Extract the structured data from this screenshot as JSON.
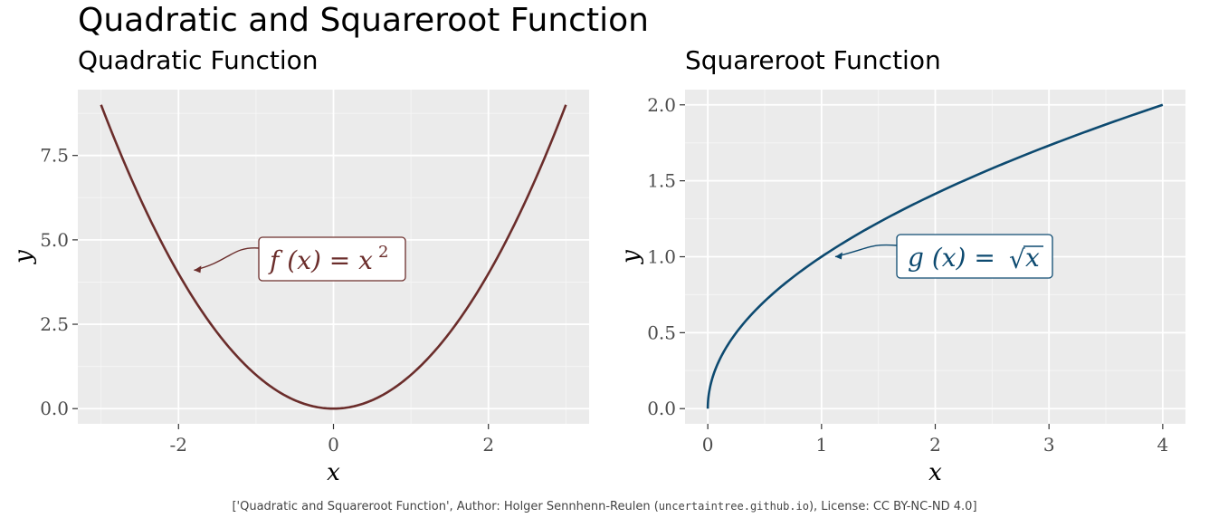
{
  "page": {
    "title": "Quadratic and Squareroot Function",
    "caption": {
      "part1": "['Quadratic and Squareroot Function', Author: Holger Sennhenn-Reulen (",
      "url": "uncertaintree.github.io",
      "part2": "), License: CC BY-NC-ND 4.0]"
    }
  },
  "chart_data": [
    {
      "type": "line",
      "title": "Quadratic Function",
      "function": "x^2",
      "x": [
        -3,
        -2.5,
        -2,
        -1.5,
        -1,
        -0.5,
        0,
        0.5,
        1,
        1.5,
        2,
        2.5,
        3
      ],
      "y": [
        9,
        6.25,
        4,
        2.25,
        1,
        0.25,
        0,
        0.25,
        1,
        2.25,
        4,
        6.25,
        9
      ],
      "xlabel": "x",
      "ylabel": "y",
      "xlim": [
        -3.3,
        3.3
      ],
      "ylim": [
        -0.45,
        9.45
      ],
      "xticks": [
        -2,
        0,
        2
      ],
      "xtick_labels": [
        "-2",
        "0",
        "2"
      ],
      "yticks": [
        0,
        2.5,
        5,
        7.5
      ],
      "ytick_labels": [
        "0.0",
        "2.5",
        "5.0",
        "7.5"
      ],
      "line_color": "#6b2d2b",
      "annotation": {
        "label": "f (x) = x",
        "superscript": "2",
        "points_to": [
          -1.8,
          4.1
        ],
        "box_at": [
          -0.2,
          4.4
        ]
      },
      "grid": true,
      "background": "#ebebeb"
    },
    {
      "type": "line",
      "title": "Squareroot Function",
      "function": "sqrt(x)",
      "x": [
        0,
        0.01,
        0.05,
        0.1,
        0.25,
        0.5,
        0.75,
        1,
        1.5,
        2,
        2.5,
        3,
        3.5,
        4
      ],
      "y": [
        0,
        0.1,
        0.2236,
        0.3162,
        0.5,
        0.7071,
        0.866,
        1,
        1.2247,
        1.4142,
        1.5811,
        1.7321,
        1.8708,
        2
      ],
      "xlabel": "x",
      "ylabel": "y",
      "xlim": [
        -0.2,
        4.2
      ],
      "ylim": [
        -0.1,
        2.1
      ],
      "xticks": [
        0,
        1,
        2,
        3,
        4
      ],
      "xtick_labels": [
        "0",
        "1",
        "2",
        "3",
        "4"
      ],
      "yticks": [
        0,
        0.5,
        1,
        1.5,
        2
      ],
      "ytick_labels": [
        "0.0",
        "0.5",
        "1.0",
        "1.5",
        "2.0"
      ],
      "line_color": "#0d4a70",
      "annotation": {
        "label": "g (x) = ",
        "radical": "√",
        "radicand": "x",
        "points_to": [
          1.12,
          1.0
        ],
        "box_at": [
          2.25,
          1.0
        ]
      },
      "grid": true,
      "background": "#ebebeb"
    }
  ]
}
